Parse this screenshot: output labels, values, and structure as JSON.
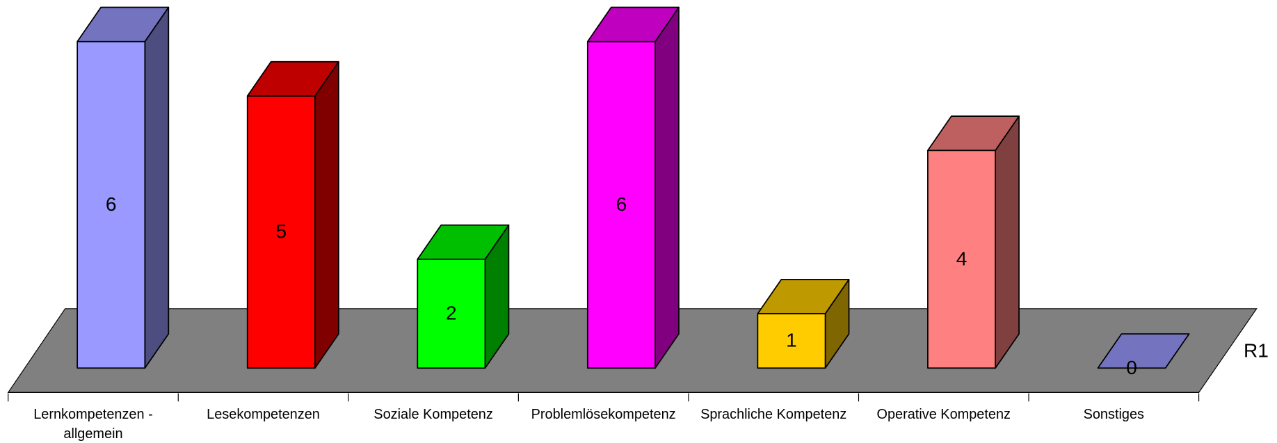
{
  "chart_data": {
    "type": "bar3d",
    "categories": [
      "Lernkompetenzen - allgemein",
      "Lesekompetenzen",
      "Soziale Kompetenz",
      "Problemlösekompetenz",
      "Sprachliche Kompetenz",
      "Operative Kompetenz",
      "Sonstiges"
    ],
    "series": [
      {
        "name": "R1",
        "values": [
          6,
          5,
          2,
          6,
          1,
          4,
          0
        ],
        "colors": [
          "#9999ff",
          "#ff0000",
          "#00ff00",
          "#ff00ff",
          "#ffcc00",
          "#ff8080",
          "#9999ff"
        ]
      }
    ],
    "ylim": [
      0,
      6
    ]
  }
}
